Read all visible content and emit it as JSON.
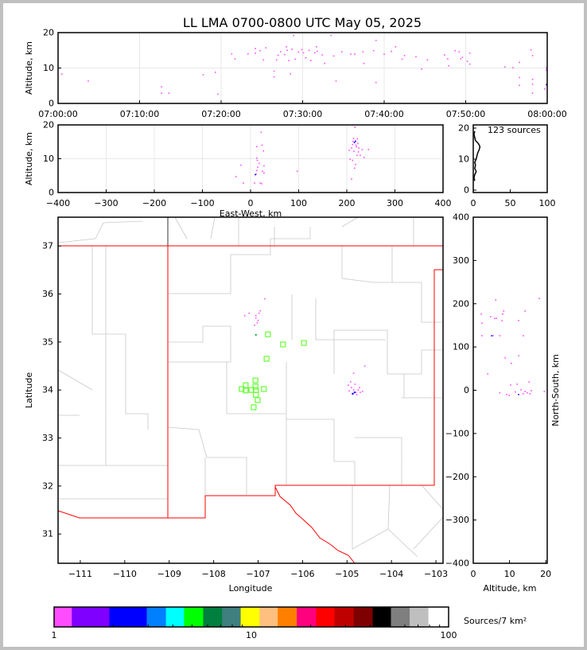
{
  "title": "LL LMA 0700-0800 UTC May 05, 2025",
  "chart_data": [
    {
      "panel": "time-altitude",
      "type": "scatter",
      "xlabel": "",
      "ylabel": "Altitude, km",
      "xlim": [
        "07:00:00",
        "08:00:00"
      ],
      "ylim": [
        0,
        20
      ],
      "xticks": [
        "07:00:00",
        "07:10:00",
        "07:20:00",
        "07:30:00",
        "07:40:00",
        "07:50:00",
        "08:00:00"
      ],
      "yticks": [
        "0",
        "10",
        "20"
      ],
      "grid": true,
      "points": [
        [
          "07:00:28",
          8.3
        ],
        [
          "07:03:42",
          6.3
        ],
        [
          "07:12:42",
          4.7
        ],
        [
          "07:12:42",
          2.9
        ],
        [
          "07:13:36",
          2.9
        ],
        [
          "07:17:48",
          8.1
        ],
        [
          "07:19:18",
          8.8
        ],
        [
          "07:19:36",
          2.6
        ],
        [
          "07:21:18",
          14.0
        ],
        [
          "07:21:42",
          12.6
        ],
        [
          "07:23:18",
          14.0
        ],
        [
          "07:24:12",
          15.5
        ],
        [
          "07:24:12",
          14.2
        ],
        [
          "07:24:48",
          14.9
        ],
        [
          "07:25:12",
          12.3
        ],
        [
          "07:25:30",
          15.7
        ],
        [
          "07:26:30",
          9.1
        ],
        [
          "07:26:30",
          7.5
        ],
        [
          "07:26:48",
          12.3
        ],
        [
          "07:27:00",
          13.6
        ],
        [
          "07:27:18",
          14.6
        ],
        [
          "07:27:48",
          13.8
        ],
        [
          "07:28:00",
          16.0
        ],
        [
          "07:28:06",
          15.0
        ],
        [
          "07:28:18",
          12.1
        ],
        [
          "07:28:30",
          8.3
        ],
        [
          "07:28:54",
          19.2
        ],
        [
          "07:28:42",
          15.3
        ],
        [
          "07:29:06",
          12.5
        ],
        [
          "07:29:30",
          14.5
        ],
        [
          "07:29:54",
          15.2
        ],
        [
          "07:30:06",
          14.3
        ],
        [
          "07:30:24",
          12.9
        ],
        [
          "07:30:48",
          15.0
        ],
        [
          "07:31:00",
          12.1
        ],
        [
          "07:31:30",
          14.3
        ],
        [
          "07:31:42",
          16.0
        ],
        [
          "07:31:48",
          14.7
        ],
        [
          "07:32:24",
          13.7
        ],
        [
          "07:32:42",
          11.3
        ],
        [
          "07:33:30",
          19.2
        ],
        [
          "07:33:48",
          13.4
        ],
        [
          "07:34:06",
          6.3
        ],
        [
          "07:34:48",
          14.6
        ],
        [
          "07:35:54",
          13.9
        ],
        [
          "07:36:24",
          13.9
        ],
        [
          "07:37:24",
          14.6
        ],
        [
          "07:37:30",
          11.3
        ],
        [
          "07:38:42",
          14.9
        ],
        [
          "07:39:00",
          17.8
        ],
        [
          "07:39:00",
          5.9
        ],
        [
          "07:40:00",
          13.9
        ],
        [
          "07:40:54",
          14.7
        ],
        [
          "07:41:24",
          16.0
        ],
        [
          "07:42:12",
          12.5
        ],
        [
          "07:42:30",
          13.5
        ],
        [
          "07:43:54",
          13.2
        ],
        [
          "07:44:36",
          9.7
        ],
        [
          "07:45:18",
          12.3
        ],
        [
          "07:47:24",
          13.7
        ],
        [
          "07:47:48",
          12.6
        ],
        [
          "07:47:54",
          10.6
        ],
        [
          "07:48:42",
          14.9
        ],
        [
          "07:49:12",
          14.6
        ],
        [
          "07:49:24",
          12.6
        ],
        [
          "07:49:36",
          13.0
        ],
        [
          "07:50:12",
          11.9
        ],
        [
          "07:50:30",
          14.2
        ],
        [
          "07:50:30",
          11.1
        ],
        [
          "07:54:48",
          10.3
        ],
        [
          "07:55:48",
          10.1
        ],
        [
          "07:56:36",
          11.6
        ],
        [
          "07:56:36",
          7.3
        ],
        [
          "07:56:36",
          5.1
        ],
        [
          "07:58:00",
          15.1
        ],
        [
          "07:58:12",
          13.5
        ],
        [
          "07:58:12",
          6.8
        ],
        [
          "07:58:12",
          5.4
        ],
        [
          "07:58:12",
          2.9
        ],
        [
          "07:59:42",
          4.1
        ],
        [
          "07:59:54",
          10.0
        ],
        [
          "07:59:54",
          9.4
        ],
        [
          "07:59:54",
          5.3
        ]
      ]
    },
    {
      "panel": "east-west-altitude",
      "type": "scatter",
      "xlabel": "East-West, km",
      "ylabel": "Altitude, km",
      "xlim": [
        -400,
        400
      ],
      "ylim": [
        0,
        20
      ],
      "xticks": [
        "−400",
        "−300",
        "−200",
        "−100",
        "0",
        "100",
        "200",
        "300",
        "400"
      ],
      "yticks": [
        "0",
        "10",
        "20"
      ],
      "grid": true,
      "points": [
        [
          -30,
          4.7
        ],
        [
          -20,
          8.1
        ],
        [
          -15,
          2.8
        ],
        [
          8,
          2.8
        ],
        [
          10,
          5.3
        ],
        [
          12,
          5.5
        ],
        [
          13,
          6.5
        ],
        [
          13,
          10.2
        ],
        [
          14,
          9.5
        ],
        [
          13,
          13.6
        ],
        [
          15,
          7.5
        ],
        [
          18,
          8.6
        ],
        [
          20,
          2.8
        ],
        [
          22,
          17.8
        ],
        [
          23,
          2.6
        ],
        [
          24,
          14.0
        ],
        [
          25,
          6.3
        ],
        [
          27,
          12.3
        ],
        [
          28,
          5.8
        ],
        [
          28,
          7.9
        ],
        [
          97,
          6.3
        ],
        [
          205,
          12.5
        ],
        [
          207,
          9.8
        ],
        [
          210,
          13.2
        ],
        [
          212,
          14.2
        ],
        [
          213,
          15.1
        ],
        [
          214,
          16.0
        ],
        [
          215,
          12.2
        ],
        [
          216,
          14.8
        ],
        [
          217,
          19.3
        ],
        [
          216,
          7.2
        ],
        [
          210,
          4.0
        ],
        [
          218,
          15.2
        ],
        [
          219,
          14.0
        ],
        [
          220,
          13.5
        ],
        [
          221,
          11.0
        ],
        [
          222,
          15.9
        ],
        [
          223,
          14.5
        ],
        [
          224,
          12.0
        ],
        [
          225,
          13.2
        ],
        [
          228,
          11.0
        ],
        [
          232,
          12.7
        ],
        [
          236,
          10.4
        ],
        [
          245,
          12.7
        ],
        [
          218,
          8.3
        ],
        [
          212,
          9.5
        ]
      ]
    },
    {
      "panel": "altitude-histogram",
      "type": "line",
      "annotation": "123 sources",
      "xlim": [
        0,
        100
      ],
      "ylim": [
        0,
        20
      ],
      "xticks": [
        "0",
        "50",
        "100"
      ],
      "yticks": [
        "0",
        "10",
        "20"
      ],
      "altitudes": [
        3,
        4,
        5,
        6,
        7,
        8,
        9,
        10,
        11,
        12,
        13,
        14,
        15,
        16,
        17,
        18,
        19
      ],
      "counts": [
        2,
        1,
        2,
        4,
        2,
        3,
        2,
        4,
        5,
        6,
        8,
        9,
        7,
        3,
        2,
        1,
        2
      ]
    },
    {
      "panel": "plan-view",
      "type": "scatter",
      "xlabel": "Longitude",
      "ylabel": "Latitude",
      "xlim": [
        -111.5,
        -102.84
      ],
      "ylim": [
        30.39,
        37.6
      ],
      "xticks": [
        "−111",
        "−110",
        "−109",
        "−108",
        "−107",
        "−106",
        "−105",
        "−104",
        "−103"
      ],
      "yticks": [
        "31",
        "32",
        "33",
        "34",
        "35",
        "36",
        "37"
      ],
      "sources": [
        [
          -107.3,
          35.55
        ],
        [
          -107.05,
          35.5
        ],
        [
          -107.0,
          35.45
        ],
        [
          -107.2,
          35.6
        ],
        [
          -106.98,
          35.6
        ],
        [
          -107.08,
          35.35
        ],
        [
          -106.85,
          35.9
        ],
        [
          -106.95,
          35.65
        ],
        [
          -107.05,
          35.55
        ],
        [
          -107.02,
          35.4
        ],
        [
          -104.97,
          34.1
        ],
        [
          -104.9,
          34.05
        ],
        [
          -104.85,
          34.0
        ],
        [
          -104.8,
          33.95
        ],
        [
          -104.75,
          34.0
        ],
        [
          -104.7,
          33.95
        ],
        [
          -104.65,
          33.97
        ],
        [
          -104.88,
          33.93
        ],
        [
          -104.92,
          34.17
        ],
        [
          -104.82,
          34.12
        ],
        [
          -104.78,
          33.9
        ],
        [
          -104.85,
          34.35
        ],
        [
          -104.6,
          34.5
        ],
        [
          -104.95,
          33.98
        ],
        [
          -104.72,
          34.05
        ]
      ],
      "highlight_sources": [
        [
          -107.05,
          35.15
        ],
        [
          -104.87,
          33.92
        ],
        [
          -104.83,
          33.95
        ]
      ],
      "stations": [
        [
          -106.78,
          35.16
        ],
        [
          -106.44,
          34.95
        ],
        [
          -105.97,
          34.98
        ],
        [
          -106.81,
          34.65
        ],
        [
          -107.06,
          34.2
        ],
        [
          -107.06,
          34.07
        ],
        [
          -107.28,
          34.1
        ],
        [
          -107.37,
          34.02
        ],
        [
          -107.28,
          33.99
        ],
        [
          -107.15,
          34.0
        ],
        [
          -107.05,
          34.0
        ],
        [
          -106.87,
          34.02
        ],
        [
          -107.05,
          33.9
        ],
        [
          -107.01,
          33.79
        ],
        [
          -107.1,
          33.64
        ]
      ],
      "station_color": "#66ff33",
      "border_color": "#ff0000",
      "county_color": "#c8c8c8"
    },
    {
      "panel": "altitude-north-south",
      "type": "scatter",
      "xlabel": "Altitude, km",
      "ylabel": "North-South, km",
      "xlim": [
        0,
        20.4
      ],
      "ylim": [
        -400,
        400
      ],
      "xticks": [
        "0",
        "10",
        "20"
      ],
      "yticks": [
        "−400",
        "−300",
        "−200",
        "−100",
        "0",
        "100",
        "200",
        "300",
        "400"
      ],
      "points": [
        [
          2.2,
          176
        ],
        [
          2.4,
          155
        ],
        [
          2.4,
          126
        ],
        [
          4.0,
          38
        ],
        [
          4.8,
          170
        ],
        [
          5.1,
          126
        ],
        [
          5.9,
          166
        ],
        [
          6.2,
          209
        ],
        [
          6.4,
          166
        ],
        [
          7.3,
          126
        ],
        [
          7.9,
          161
        ],
        [
          8.4,
          183
        ],
        [
          8.1,
          176
        ],
        [
          8.8,
          75
        ],
        [
          10.5,
          62
        ],
        [
          12.5,
          161
        ],
        [
          12.5,
          80
        ],
        [
          14.3,
          183
        ],
        [
          13.8,
          126
        ],
        [
          18.2,
          212
        ],
        [
          7.3,
          -6
        ],
        [
          9.2,
          -10
        ],
        [
          10.3,
          12
        ],
        [
          12.1,
          14
        ],
        [
          12.5,
          -10
        ],
        [
          13.2,
          1
        ],
        [
          13.8,
          -8
        ],
        [
          14.3,
          -3
        ],
        [
          14.9,
          -6
        ],
        [
          15.4,
          19
        ],
        [
          15.6,
          -8
        ],
        [
          16.0,
          -1
        ],
        [
          11.6,
          -4
        ],
        [
          9.9,
          -12
        ],
        [
          19.6,
          -3
        ],
        [
          5.5,
          126
        ]
      ]
    },
    {
      "panel": "colorbar",
      "type": "colorbar",
      "label": "Sources/7 km²",
      "scale": "log",
      "range": [
        1,
        100
      ],
      "ticks": [
        "1",
        "10",
        "100"
      ],
      "bounds": [
        1,
        1.23,
        1.905,
        2.95,
        3.69,
        4.56,
        5.7,
        7.11,
        8.83,
        11.0,
        13.6,
        17.0,
        21.3,
        26.4,
        33.0,
        41.2,
        51.0,
        63.5,
        79.0,
        100
      ],
      "colors": [
        "#ff4cff",
        "#7f00ff",
        "#0000ff",
        "#007fff",
        "#00ffff",
        "#00ff00",
        "#007f3f",
        "#3f7f7f",
        "#ffff00",
        "#ffbf7f",
        "#ff7f00",
        "#ff007f",
        "#ff0000",
        "#bf0000",
        "#7f0000",
        "#000000",
        "#7f7f7f",
        "#bfbfbf",
        "#ffffff"
      ]
    }
  ],
  "colors": {
    "source": "#ff4cff",
    "source_dense": "#0000ff",
    "highlight": "#00aa44",
    "grid": "#e8e8e8"
  }
}
